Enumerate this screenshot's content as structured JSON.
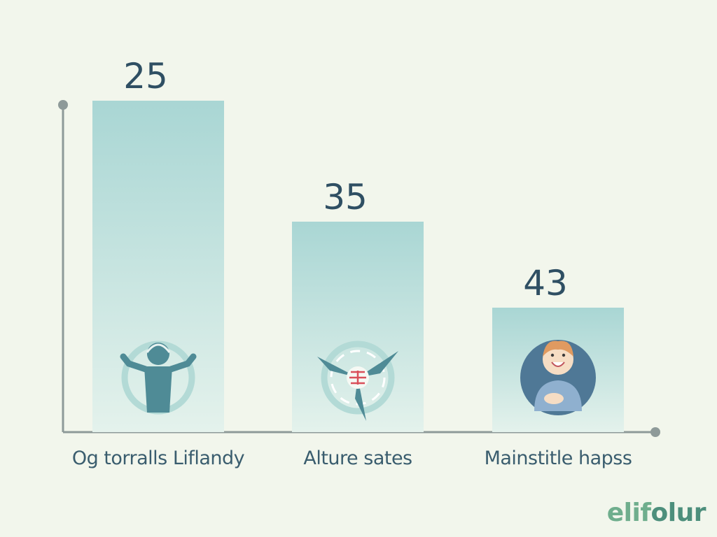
{
  "chart_data": {
    "type": "bar",
    "categories": [
      "Og torralls Liflandy",
      "Alture sates",
      "Mainstitle hapss"
    ],
    "values": [
      25,
      35,
      43
    ],
    "value_labels": [
      "25",
      "35",
      "43"
    ],
    "title": "",
    "xlabel": "",
    "ylabel": "",
    "grid": false,
    "legend": "none",
    "icons": [
      "figure-raising-arms-icon",
      "fan-icon",
      "smiling-person-icon"
    ]
  },
  "colors": {
    "background": "#f2f6ec",
    "bar_top": "#a9d6d4",
    "bar_bottom": "#e4f2ec",
    "axis": "#8e9a99",
    "value_text": "#2f4f63",
    "category_text": "#3a5d6e",
    "icon_ring": "#b3dad6",
    "icon_figure": "#4f8b96",
    "icon_accent": "#d9505a",
    "person_circle": "#4f7896",
    "person_skin": "#f6ddc4",
    "person_hair": "#e09a60",
    "watermark_primary": "#6fae8d",
    "watermark_secondary": "#4d8f7c"
  },
  "watermark": {
    "part1": "elif",
    "part2": "olur"
  }
}
